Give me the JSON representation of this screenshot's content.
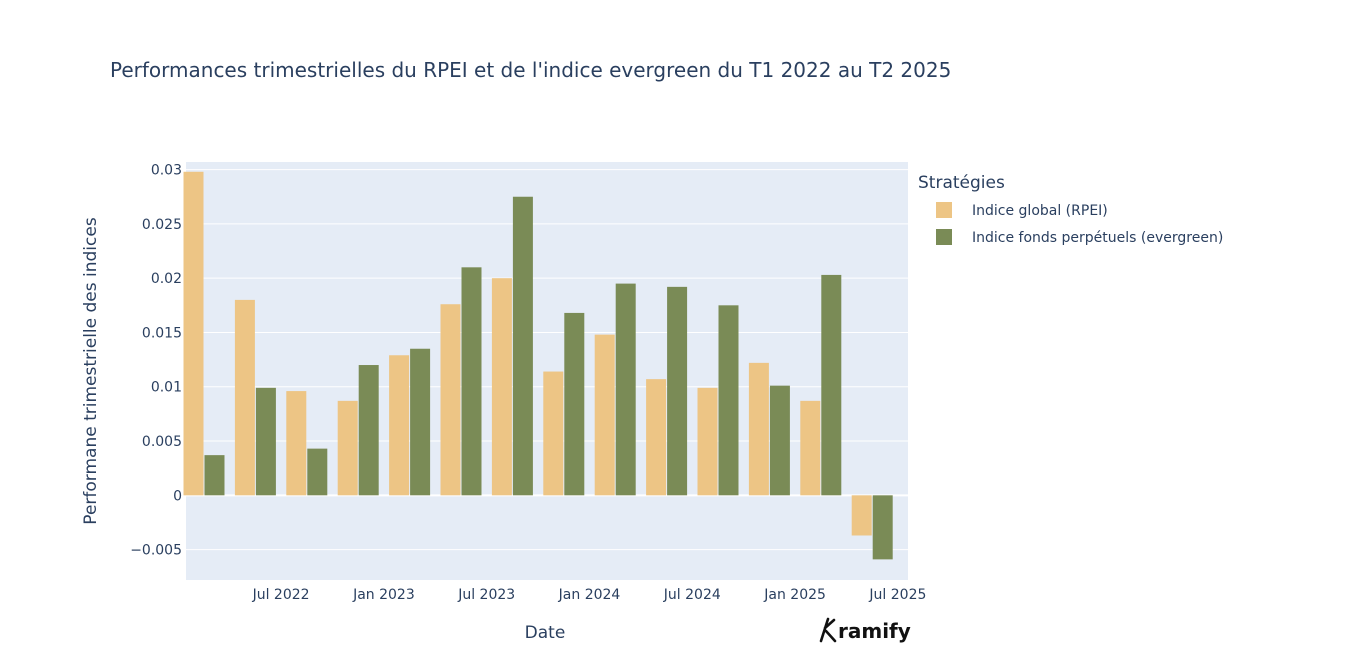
{
  "chart_data": {
    "type": "bar",
    "title": "Performances trimestrielles du RPEI et de l'indice evergreen du T1 2022 au T2 2025",
    "xlabel": "Date",
    "ylabel": "Performane trimestrielle des indices",
    "x_tick_labels": [
      "Jul 2022",
      "Jan 2023",
      "Jul 2023",
      "Jan 2024",
      "Jul 2024",
      "Jan 2025",
      "Jul 2025"
    ],
    "y_tick_labels": [
      "−0.005",
      "0",
      "0.005",
      "0.01",
      "0.015",
      "0.02",
      "0.025",
      "0.03"
    ],
    "y_tick_values": [
      -0.005,
      0,
      0.005,
      0.01,
      0.015,
      0.02,
      0.025,
      0.03
    ],
    "ylim": [
      -0.0078,
      0.0307
    ],
    "categories": [
      "2022-Q1",
      "2022-Q2",
      "2022-Q3",
      "2022-Q4",
      "2023-Q1",
      "2023-Q2",
      "2023-Q3",
      "2023-Q4",
      "2024-Q1",
      "2024-Q2",
      "2024-Q3",
      "2024-Q4",
      "2025-Q1",
      "2025-Q2"
    ],
    "series": [
      {
        "name": "Indice global (RPEI)",
        "color": "#edc585",
        "values": [
          0.0298,
          0.018,
          0.0096,
          0.0087,
          0.0129,
          0.0176,
          0.02,
          0.0114,
          0.0148,
          0.0107,
          0.0099,
          0.0122,
          0.0087,
          -0.0037
        ]
      },
      {
        "name": "Indice fonds perpétuels (evergreen)",
        "color": "#7a8b56",
        "values": [
          0.0037,
          0.0099,
          0.0043,
          0.012,
          0.0135,
          0.021,
          0.0275,
          0.0168,
          0.0195,
          0.0192,
          0.0175,
          0.0101,
          0.0203,
          -0.0059
        ]
      }
    ],
    "legend": {
      "title": "Stratégies",
      "position": "top-right"
    },
    "grid": true,
    "plot_background": "#e5ecf6",
    "logo_text": "ramify"
  }
}
